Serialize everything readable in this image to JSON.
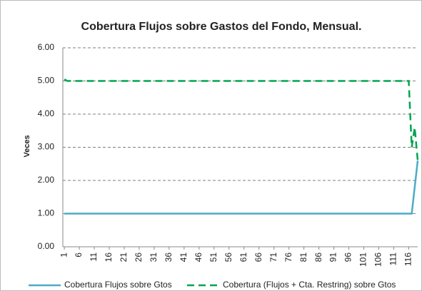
{
  "chart_data": {
    "type": "line",
    "title": "Cobertura Flujos sobre Gastos del Fondo, Mensual.",
    "y_label": "Veces",
    "xlim": [
      0.5,
      119
    ],
    "xticks": [
      1,
      6,
      11,
      16,
      21,
      26,
      31,
      36,
      41,
      46,
      51,
      56,
      61,
      66,
      71,
      76,
      81,
      86,
      91,
      96,
      101,
      106,
      111,
      116
    ],
    "ylim": [
      0,
      6
    ],
    "yticks": [
      {
        "value": 0,
        "label": "0.00"
      },
      {
        "value": 1,
        "label": "1.00"
      },
      {
        "value": 2,
        "label": "2.00"
      },
      {
        "value": 3,
        "label": "3.00"
      },
      {
        "value": 4,
        "label": "4.00"
      },
      {
        "value": 5,
        "label": "5.00"
      },
      {
        "value": 6,
        "label": "6.00"
      }
    ],
    "grid": true,
    "legend": "bottom",
    "series": [
      {
        "name": "Cobertura Flujos sobre Gtos",
        "color": "#4bacc6",
        "dash": false,
        "x": [
          1,
          117,
          119
        ],
        "values": [
          1,
          1,
          2.6
        ]
      },
      {
        "name": "Cobertura (Flujos + Cta. Restring) sobre Gtos",
        "color": "#00a550",
        "dash": true,
        "x": [
          1,
          2,
          116,
          117,
          118,
          119
        ],
        "values": [
          5.05,
          5,
          5,
          3.0,
          3.6,
          2.6
        ]
      }
    ]
  }
}
